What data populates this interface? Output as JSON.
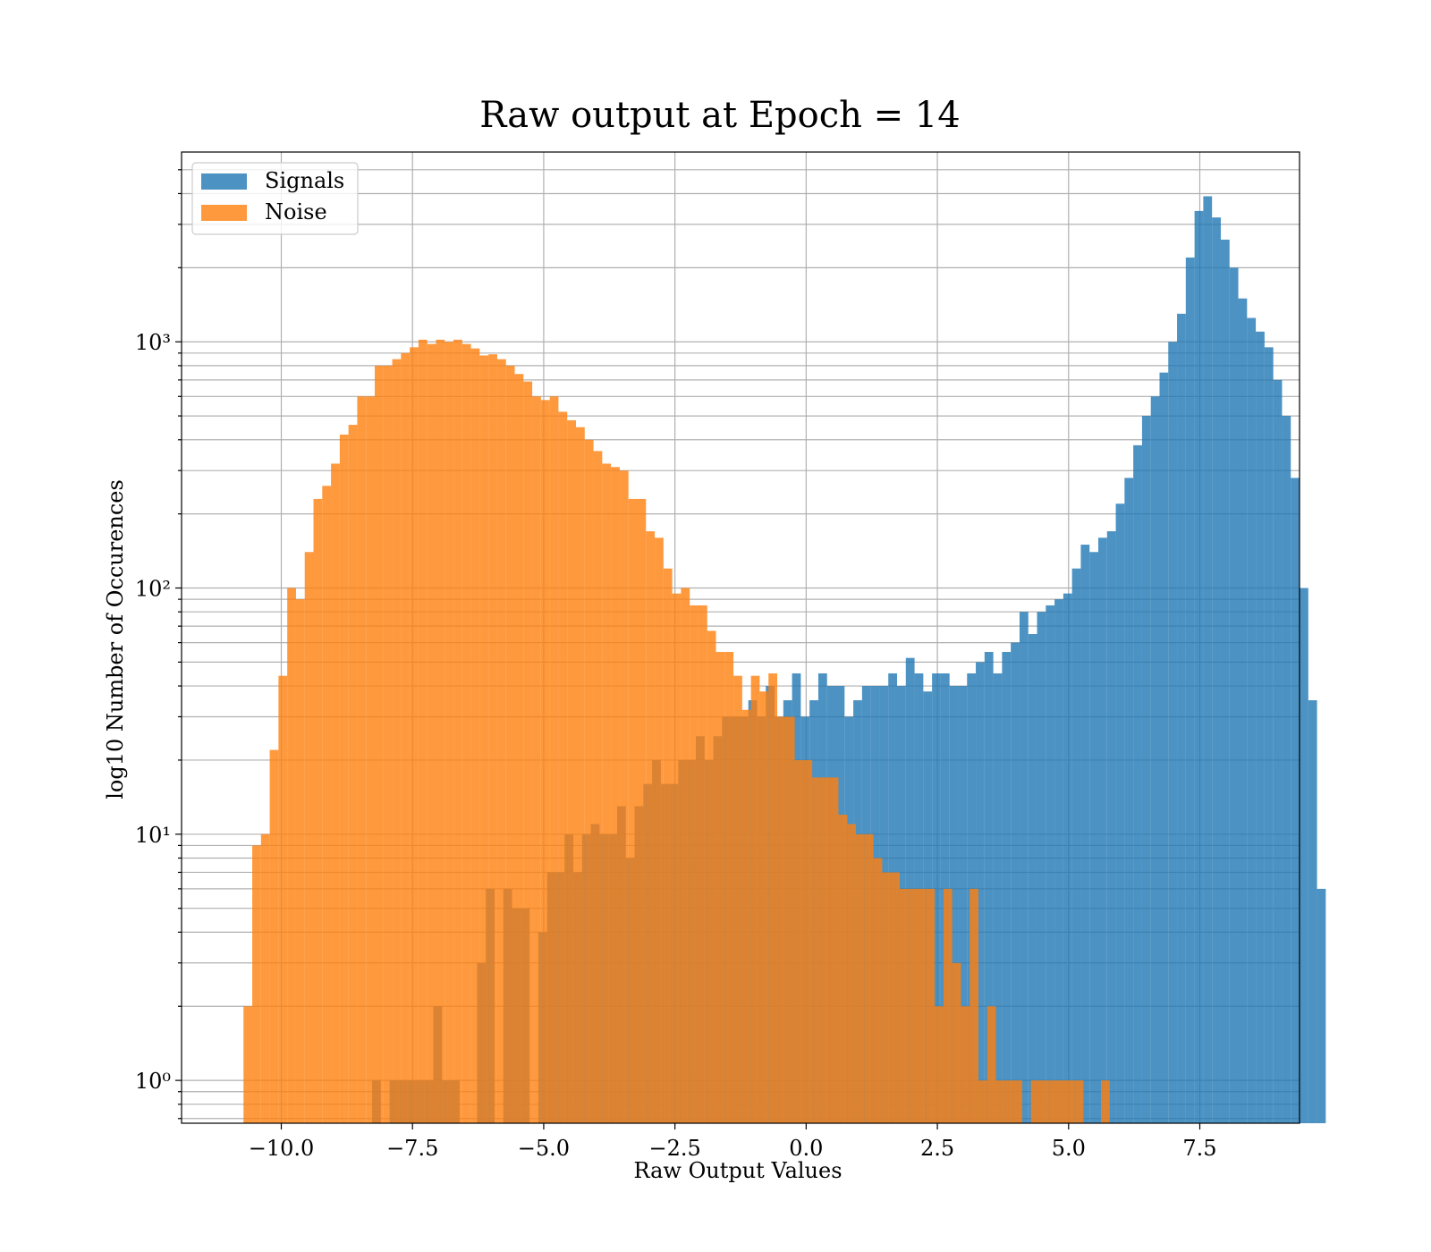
{
  "chart_data": {
    "type": "bar",
    "title": "Raw output at Epoch = 14",
    "xlabel": "Raw Output Values",
    "ylabel": "log10 Number of Occurences",
    "xlim": [
      -11.9,
      9.4
    ],
    "ylim": [
      0.67,
      5900
    ],
    "yscale": "log",
    "grid": true,
    "legend_position": "top-left",
    "x_ticks": [
      -10.0,
      -7.5,
      -5.0,
      -2.5,
      0.0,
      2.5,
      5.0,
      7.5
    ],
    "x_tick_labels": [
      "−10.0",
      "−7.5",
      "−5.0",
      "−2.5",
      "0.0",
      "2.5",
      "5.0",
      "7.5"
    ],
    "y_ticks": [
      1,
      10,
      100,
      1000
    ],
    "y_tick_labels": [
      "10⁰",
      "10¹",
      "10²",
      "10³"
    ],
    "series": [
      {
        "name": "Signals",
        "color": "#1f77b4",
        "opacity": 0.8,
        "bin_start": -8.27,
        "bin_width": 0.1667,
        "values": [
          1,
          0,
          1,
          1,
          1,
          1,
          1,
          2,
          1,
          1,
          0,
          0,
          3,
          6,
          0,
          6,
          5,
          5,
          0,
          4,
          7,
          7,
          10,
          7,
          10,
          11,
          10,
          10,
          13,
          8,
          13,
          16,
          20,
          16,
          16,
          20,
          20,
          25,
          20,
          25,
          30,
          30,
          30,
          35,
          30,
          40,
          30,
          35,
          45,
          30,
          35,
          45,
          40,
          40,
          30,
          35,
          40,
          40,
          40,
          45,
          40,
          52,
          45,
          38,
          45,
          45,
          40,
          40,
          45,
          50,
          55,
          45,
          55,
          60,
          80,
          65,
          80,
          85,
          90,
          95,
          120,
          150,
          140,
          160,
          170,
          220,
          280,
          380,
          500,
          600,
          750,
          1000,
          1300,
          2200,
          3400,
          3900,
          3200,
          2600,
          2000,
          1500,
          1250,
          1100,
          950,
          700,
          500,
          280,
          100,
          35,
          6
        ]
      },
      {
        "name": "Noise",
        "color": "#ff7f0e",
        "opacity": 0.8,
        "bin_start": -10.72,
        "bin_width": 0.1667,
        "values": [
          2,
          9,
          10,
          22,
          44,
          100,
          90,
          140,
          230,
          260,
          320,
          420,
          460,
          600,
          600,
          800,
          800,
          850,
          900,
          950,
          1020,
          980,
          1020,
          1000,
          1020,
          980,
          940,
          880,
          890,
          850,
          800,
          740,
          690,
          600,
          580,
          600,
          520,
          480,
          450,
          400,
          360,
          320,
          310,
          300,
          230,
          230,
          170,
          160,
          120,
          95,
          100,
          85,
          85,
          67,
          55,
          55,
          44,
          32,
          44,
          38,
          45,
          30,
          30,
          20,
          20,
          17,
          17,
          17,
          12,
          11,
          10,
          10,
          8,
          7,
          7,
          6,
          6,
          6,
          6,
          2,
          6,
          3,
          2,
          6,
          1,
          2,
          1,
          1,
          1,
          0,
          1,
          1,
          1,
          1,
          1,
          1,
          0,
          0,
          1
        ]
      }
    ]
  }
}
